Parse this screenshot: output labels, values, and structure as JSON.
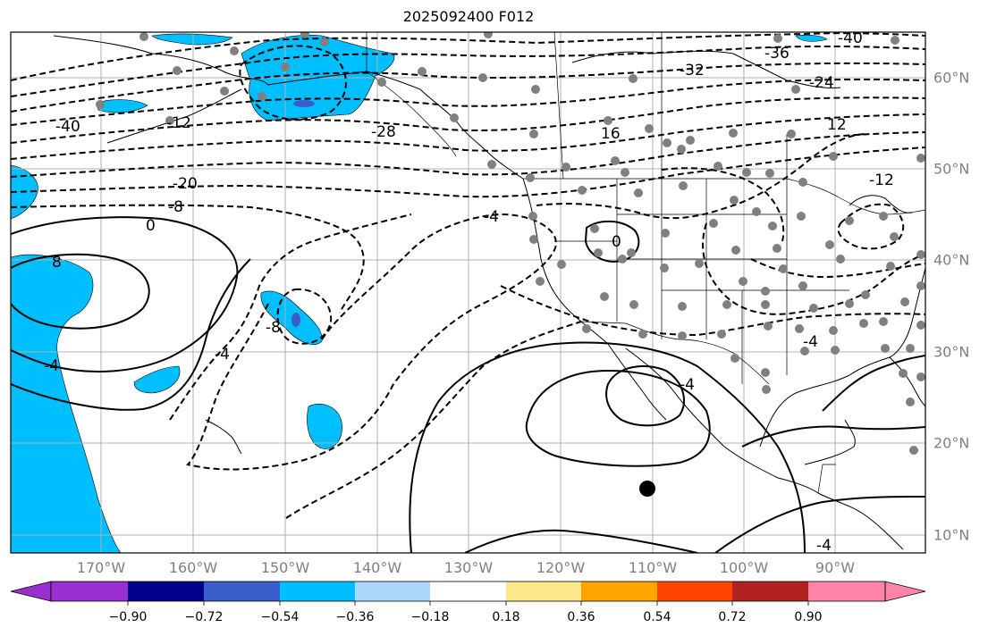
{
  "title": "2025092400 F012",
  "lon_labels": [
    "170°W",
    "160°W",
    "150°W",
    "140°W",
    "130°W",
    "120°W",
    "110°W",
    "100°W",
    "90°W"
  ],
  "lat_labels": [
    "60°N",
    "50°N",
    "40°N",
    "30°N",
    "20°N",
    "10°N"
  ],
  "colorbar": {
    "ticks": [
      "−0.90",
      "−0.72",
      "−0.54",
      "−0.36",
      "−0.18",
      "0.18",
      "0.36",
      "0.54",
      "0.72",
      "0.90"
    ],
    "colors": [
      "#9b30d0",
      "#00008b",
      "#3a5fcd",
      "#00bfff",
      "#add8fe",
      "#ffffff",
      "#fde98b",
      "#ffa500",
      "#ff4500",
      "#b22222",
      "#ff85a8"
    ]
  },
  "contour_labels": [
    "-40",
    "-36",
    "-32",
    "-24",
    "-40",
    "-28",
    "-20",
    "-8",
    "0",
    "8",
    "-4",
    "-4",
    "-12",
    "16",
    "12",
    "-12",
    "0",
    "-4",
    "-4",
    "-8",
    "-4",
    "-4"
  ],
  "colors": {
    "water_fill": "#00bfff",
    "inner_fill": "#3a5fcd",
    "station_dot": "#808080",
    "grid": "#b0b0b0"
  }
}
